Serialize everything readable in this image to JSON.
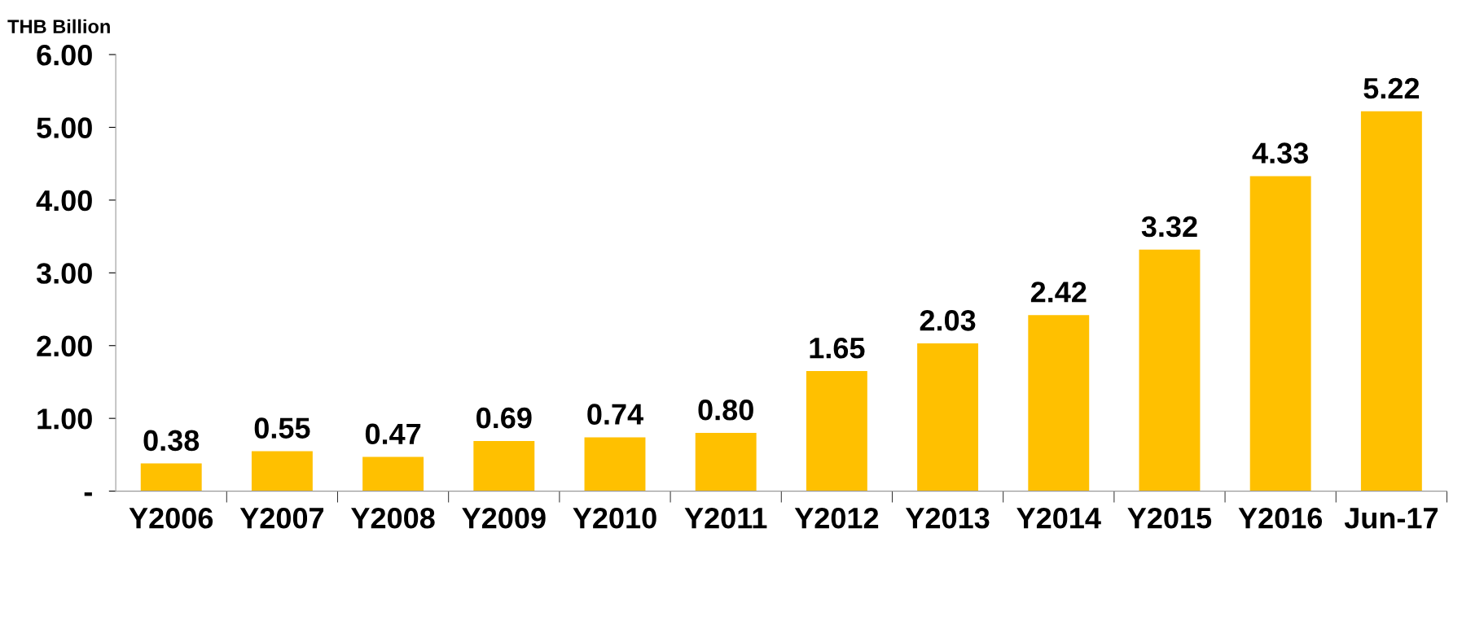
{
  "chart_data": {
    "type": "bar",
    "ylabel": "THB Billion",
    "categories": [
      "Y2006",
      "Y2007",
      "Y2008",
      "Y2009",
      "Y2010",
      "Y2011",
      "Y2012",
      "Y2013",
      "Y2014",
      "Y2015",
      "Y2016",
      "Jun-17"
    ],
    "values": [
      0.38,
      0.55,
      0.47,
      0.69,
      0.74,
      0.8,
      1.65,
      2.03,
      2.42,
      3.32,
      4.33,
      5.22
    ],
    "value_labels": [
      "0.38",
      "0.55",
      "0.47",
      "0.69",
      "0.74",
      "0.80",
      "1.65",
      "2.03",
      "2.42",
      "3.32",
      "4.33",
      "5.22"
    ],
    "color": "#ffc000",
    "ylim": [
      0,
      6
    ],
    "yticks": [
      {
        "value": 0,
        "label": "-"
      },
      {
        "value": 1,
        "label": "1.00"
      },
      {
        "value": 2,
        "label": "2.00"
      },
      {
        "value": 3,
        "label": "3.00"
      },
      {
        "value": 4,
        "label": "4.00"
      },
      {
        "value": 5,
        "label": "5.00"
      },
      {
        "value": 6,
        "label": "6.00"
      }
    ],
    "grid": false,
    "legend": false
  }
}
